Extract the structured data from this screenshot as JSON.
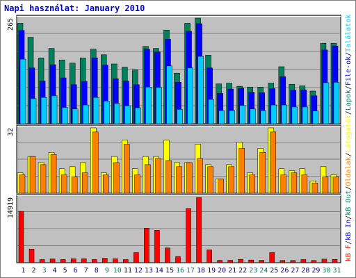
{
  "title": "Napi használat: January 2010",
  "colors": {
    "title": "#0000cc",
    "background": "#c0c0c0",
    "grid": "#808080",
    "hits": "#00ccff",
    "files": "#0000ff",
    "pages": "#00805c",
    "visits": "#ffff00",
    "sites": "#ff8000",
    "kbytes": "#ff0000",
    "day_regular": "#000080",
    "day_weekend": "#00805c"
  },
  "chart_data": [
    {
      "type": "bar",
      "panel": "top",
      "ymax_label": "265",
      "ylim": [
        0,
        265
      ],
      "categories": [
        "1",
        "2",
        "3",
        "4",
        "5",
        "6",
        "7",
        "8",
        "9",
        "10",
        "11",
        "12",
        "13",
        "14",
        "15",
        "16",
        "17",
        "18",
        "19",
        "20",
        "21",
        "22",
        "23",
        "24",
        "25",
        "26",
        "27",
        "28",
        "29",
        "30",
        "31"
      ],
      "series": [
        {
          "name": "Találatok",
          "values": [
            252,
            217,
            165,
            189,
            160,
            152,
            165,
            187,
            173,
            150,
            142,
            135,
            194,
            189,
            235,
            127,
            252,
            265,
            172,
            100,
            102,
            94,
            92,
            92,
            102,
            143,
            99,
            95,
            82,
            202,
            202
          ]
        },
        {
          "name": "File-ok",
          "values": [
            234,
            140,
            107,
            148,
            115,
            98,
            106,
            165,
            147,
            113,
            107,
            98,
            187,
            180,
            212,
            104,
            232,
            251,
            140,
            76,
            87,
            89,
            79,
            78,
            88,
            118,
            84,
            85,
            70,
            185,
            195
          ]
        },
        {
          "name": "Lapok",
          "values": [
            162,
            63,
            66,
            70,
            41,
            37,
            47,
            66,
            57,
            51,
            45,
            40,
            92,
            91,
            145,
            36,
            140,
            169,
            61,
            33,
            33,
            46,
            37,
            33,
            47,
            47,
            42,
            42,
            32,
            103,
            104
          ]
        }
      ]
    },
    {
      "type": "bar",
      "panel": "middle",
      "ymax_label": "32",
      "ylim": [
        0,
        32
      ],
      "categories": [
        "1",
        "2",
        "3",
        "4",
        "5",
        "6",
        "7",
        "8",
        "9",
        "10",
        "11",
        "12",
        "13",
        "14",
        "15",
        "16",
        "17",
        "18",
        "19",
        "20",
        "21",
        "22",
        "23",
        "24",
        "25",
        "26",
        "27",
        "28",
        "29",
        "30",
        "31"
      ],
      "series": [
        {
          "name": "Látogatók",
          "values": [
            10,
            18,
            15,
            20,
            12,
            13,
            15,
            32,
            10,
            18,
            26,
            12,
            18,
            18,
            26,
            15,
            15,
            24,
            14,
            7,
            14,
            25,
            10,
            22,
            32,
            12,
            11,
            12,
            6,
            13,
            9
          ]
        },
        {
          "name": "Oldalak",
          "values": [
            9,
            18,
            14,
            19,
            9,
            8,
            10,
            30,
            9,
            15,
            24,
            9,
            14,
            17,
            16,
            13,
            15,
            17,
            13,
            7,
            13,
            22,
            9,
            20,
            30,
            9,
            10,
            9,
            5,
            8,
            8
          ]
        }
      ]
    },
    {
      "type": "bar",
      "panel": "bottom",
      "ymax_label": "14919",
      "ylim": [
        0,
        14919
      ],
      "categories": [
        "1",
        "2",
        "3",
        "4",
        "5",
        "6",
        "7",
        "8",
        "9",
        "10",
        "11",
        "12",
        "13",
        "14",
        "15",
        "16",
        "17",
        "18",
        "19",
        "20",
        "21",
        "22",
        "23",
        "24",
        "25",
        "26",
        "27",
        "28",
        "29",
        "30",
        "31"
      ],
      "series": [
        {
          "name": "kB F",
          "values": [
            11720,
            3120,
            720,
            860,
            720,
            920,
            920,
            720,
            1020,
            920,
            720,
            2310,
            7890,
            7390,
            3380,
            1420,
            12390,
            14919,
            2920,
            540,
            550,
            770,
            620,
            540,
            2310,
            510,
            510,
            720,
            510,
            820,
            750
          ]
        }
      ]
    }
  ],
  "right_legend": [
    {
      "text": "Találatok",
      "color": "#00ccff"
    },
    {
      "text": "File-ok",
      "color": "#0000ff"
    },
    {
      "text": "Lapok",
      "color": "#00805c"
    },
    {
      "text": "Látogatók",
      "color": "#ffff00"
    },
    {
      "text": "Oldalak",
      "color": "#ff8000"
    },
    {
      "text": "kB Out",
      "color": "#00805c"
    },
    {
      "text": "kB In",
      "color": "#0000ff"
    },
    {
      "text": "kB F",
      "color": "#ff0000"
    }
  ],
  "weekend_days": [
    3,
    9,
    10,
    16,
    17,
    23,
    24,
    30,
    31
  ]
}
